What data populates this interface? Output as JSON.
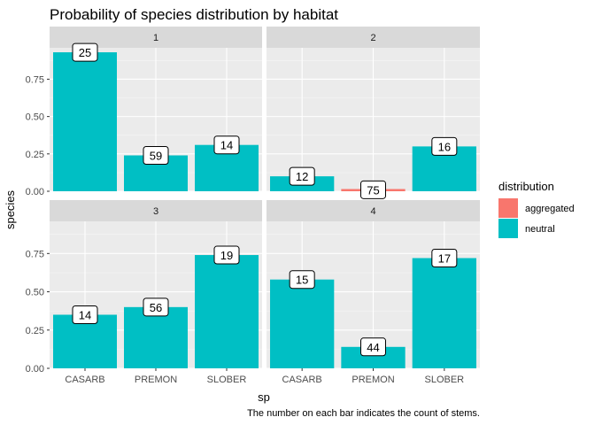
{
  "chart_data": {
    "type": "bar",
    "title": "Probability of species distribution by habitat",
    "xlabel": "sp",
    "ylabel": "species",
    "caption": "The number on each bar indicates the count of stems.",
    "categories": [
      "CASARB",
      "PREMON",
      "SLOBER"
    ],
    "y_ticks": [
      "0.00",
      "0.25",
      "0.50",
      "0.75"
    ],
    "ylim": [
      0,
      0.96
    ],
    "grid": true,
    "legend": {
      "title": "distribution",
      "position": "right",
      "items": [
        {
          "label": "aggregated",
          "color": "#F8766D"
        },
        {
          "label": "neutral",
          "color": "#00BFC4"
        }
      ]
    },
    "facets": [
      {
        "label": "1",
        "bars": [
          {
            "category": "CASARB",
            "value": 0.93,
            "count": "25",
            "distribution": "neutral"
          },
          {
            "category": "PREMON",
            "value": 0.24,
            "count": "59",
            "distribution": "neutral"
          },
          {
            "category": "SLOBER",
            "value": 0.31,
            "count": "14",
            "distribution": "neutral"
          }
        ]
      },
      {
        "label": "2",
        "bars": [
          {
            "category": "CASARB",
            "value": 0.1,
            "count": "12",
            "distribution": "neutral"
          },
          {
            "category": "PREMON",
            "value": 0.01,
            "count": "75",
            "distribution": "aggregated"
          },
          {
            "category": "SLOBER",
            "value": 0.3,
            "count": "16",
            "distribution": "neutral"
          }
        ]
      },
      {
        "label": "3",
        "bars": [
          {
            "category": "CASARB",
            "value": 0.35,
            "count": "14",
            "distribution": "neutral"
          },
          {
            "category": "PREMON",
            "value": 0.4,
            "count": "56",
            "distribution": "neutral"
          },
          {
            "category": "SLOBER",
            "value": 0.74,
            "count": "19",
            "distribution": "neutral"
          }
        ]
      },
      {
        "label": "4",
        "bars": [
          {
            "category": "CASARB",
            "value": 0.58,
            "count": "15",
            "distribution": "neutral"
          },
          {
            "category": "PREMON",
            "value": 0.14,
            "count": "44",
            "distribution": "neutral"
          },
          {
            "category": "SLOBER",
            "value": 0.72,
            "count": "17",
            "distribution": "neutral"
          }
        ]
      }
    ]
  }
}
